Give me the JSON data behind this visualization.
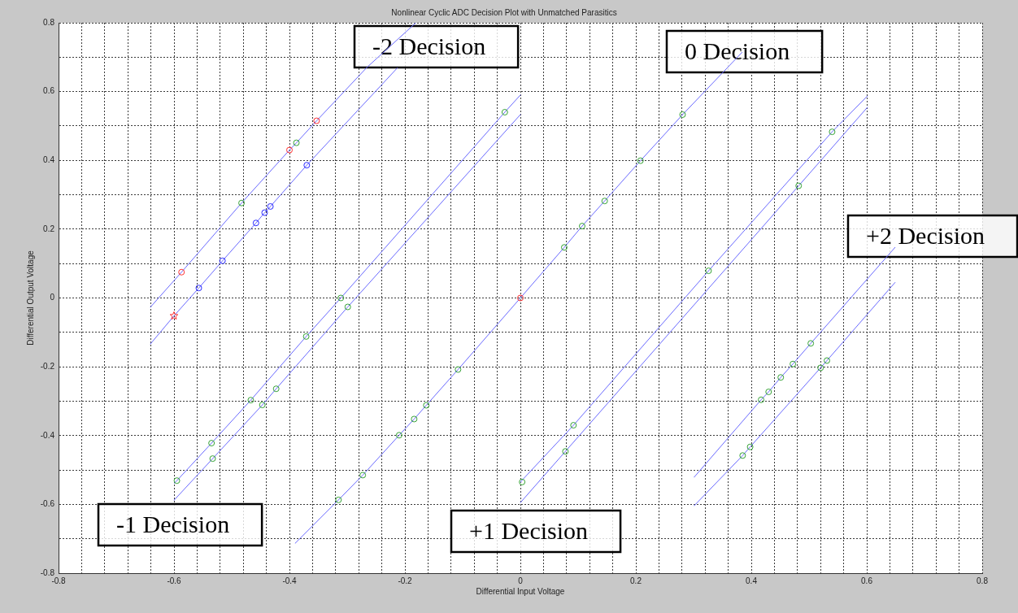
{
  "chart_data": {
    "type": "line",
    "title": "Nonlinear Cyclic ADC Decision Plot with Unmatched Parasitics",
    "xlabel": "Differential Input Voltage",
    "ylabel": "Differential Output Voltage",
    "xlim": [
      -0.8,
      0.8
    ],
    "ylim": [
      -0.8,
      0.8
    ],
    "xticks": [
      -0.8,
      {
        "value": -0.76,
        "label": null
      },
      {
        "value": -0.72,
        "label": null
      },
      {
        "value": -0.68,
        "label": null
      },
      {
        "value": -0.64,
        "label": null
      },
      -0.6,
      {
        "value": -0.56,
        "label": null
      },
      {
        "value": -0.52,
        "label": null
      },
      {
        "value": -0.48,
        "label": null
      },
      {
        "value": -0.44,
        "label": null
      },
      -0.4,
      {
        "value": -0.36,
        "label": null
      },
      {
        "value": -0.32,
        "label": null
      },
      {
        "value": -0.28,
        "label": null
      },
      {
        "value": -0.24,
        "label": null
      },
      -0.2,
      {
        "value": -0.16,
        "label": null
      },
      {
        "value": -0.12,
        "label": null
      },
      {
        "value": -0.08,
        "label": null
      },
      {
        "value": -0.04,
        "label": null
      },
      0,
      {
        "value": 0.04,
        "label": null
      },
      {
        "value": 0.08,
        "label": null
      },
      {
        "value": 0.12,
        "label": null
      },
      {
        "value": 0.16,
        "label": null
      },
      0.2,
      {
        "value": 0.24,
        "label": null
      },
      {
        "value": 0.28,
        "label": null
      },
      {
        "value": 0.32,
        "label": null
      },
      {
        "value": 0.36,
        "label": null
      },
      0.4,
      {
        "value": 0.44,
        "label": null
      },
      {
        "value": 0.48,
        "label": null
      },
      {
        "value": 0.52,
        "label": null
      },
      {
        "value": 0.56,
        "label": null
      },
      0.6,
      {
        "value": 0.64,
        "label": null
      },
      {
        "value": 0.68,
        "label": null
      },
      {
        "value": 0.72,
        "label": null
      },
      {
        "value": 0.76,
        "label": null
      },
      0.8
    ],
    "yticks": [
      -0.8,
      {
        "value": -0.7,
        "label": null
      },
      -0.6,
      {
        "value": -0.5,
        "label": null
      },
      -0.4,
      {
        "value": -0.3,
        "label": null
      },
      -0.2,
      {
        "value": -0.1,
        "label": null
      },
      0,
      {
        "value": 0.1,
        "label": null
      },
      0.2,
      {
        "value": 0.3,
        "label": null
      },
      0.4,
      {
        "value": 0.5,
        "label": null
      },
      0.6,
      {
        "value": 0.7,
        "label": null
      },
      0.8
    ],
    "grid": true,
    "series": [
      {
        "color": "#6a6aff",
        "x": [
          -0.641,
          -0.587,
          -0.483,
          -0.4,
          -0.388,
          -0.353,
          -0.266,
          -0.181
        ],
        "values": [
          -0.027,
          0.075,
          0.276,
          0.43,
          0.451,
          0.515,
          0.67,
          0.8
        ]
      },
      {
        "color": "#6a6aff",
        "x": [
          -0.641,
          -0.6,
          -0.557,
          -0.516,
          -0.458,
          -0.443,
          -0.433,
          -0.37,
          -0.213
        ],
        "values": [
          -0.134,
          -0.052,
          0.029,
          0.108,
          0.218,
          0.248,
          0.266,
          0.386,
          0.669
        ]
      },
      {
        "color": "#6a6aff",
        "x": [
          -0.6,
          -0.595,
          -0.535,
          -0.467,
          -0.371,
          -0.311,
          -0.027,
          0
        ],
        "values": [
          -0.539,
          -0.531,
          -0.422,
          -0.297,
          -0.112,
          0,
          0.54,
          0.59
        ]
      },
      {
        "color": "#6a6aff",
        "x": [
          -0.6,
          -0.533,
          -0.447,
          -0.423,
          -0.299,
          0
        ],
        "values": [
          -0.588,
          -0.467,
          -0.311,
          -0.264,
          -0.026,
          0.533
        ]
      },
      {
        "color": "#6a6aff",
        "x": [
          -0.39,
          -0.315,
          -0.273,
          -0.21,
          -0.184,
          -0.163,
          -0.108,
          0,
          0.076,
          0.107,
          0.146,
          0.208,
          0.281,
          0.384
        ],
        "values": [
          -0.713,
          -0.587,
          -0.515,
          -0.399,
          -0.352,
          -0.312,
          -0.208,
          0,
          0.147,
          0.209,
          0.282,
          0.399,
          0.533,
          0.714
        ]
      },
      {
        "color": "#6a6aff",
        "x": [
          0,
          0.092,
          0.326,
          0.54,
          0.601
        ],
        "values": [
          -0.535,
          -0.37,
          0.079,
          0.483,
          0.587
        ]
      },
      {
        "color": "#6a6aff",
        "x": [
          0,
          0.078,
          0.482,
          0.601
        ],
        "values": [
          -0.595,
          -0.446,
          0.326,
          0.554
        ]
      },
      {
        "color": "#6a6aff",
        "x": [
          0.301,
          0.417,
          0.43,
          0.451,
          0.472,
          0.503,
          0.649
        ],
        "values": [
          -0.521,
          -0.296,
          -0.273,
          -0.231,
          -0.192,
          -0.132,
          0.147
        ]
      },
      {
        "color": "#6a6aff",
        "x": [
          0.301,
          0.385,
          0.398,
          0.52,
          0.531,
          0.649
        ],
        "values": [
          -0.604,
          -0.458,
          -0.433,
          -0.203,
          -0.182,
          0.045
        ]
      },
      {
        "type": "scatter",
        "marker": "circle",
        "color": "#36a336",
        "x": [
          -0.483,
          -0.388,
          -0.027,
          -0.311,
          -0.299,
          -0.371,
          -0.467,
          -0.447,
          -0.423,
          -0.535,
          -0.533,
          -0.595,
          -0.108,
          -0.163,
          -0.184,
          -0.21,
          -0.273,
          -0.315,
          0.281,
          0.208,
          0.146,
          0.107,
          0.076,
          0.54,
          0.482,
          0.326,
          0.003,
          0.092,
          0.078,
          0.503,
          0.472,
          0.451,
          0.43,
          0.417,
          0.531,
          0.52,
          0.398,
          0.385
        ],
        "values": [
          0.276,
          0.451,
          0.54,
          0,
          -0.026,
          -0.112,
          -0.297,
          -0.311,
          -0.264,
          -0.422,
          -0.467,
          -0.531,
          -0.208,
          -0.312,
          -0.352,
          -0.399,
          -0.515,
          -0.587,
          0.533,
          0.399,
          0.282,
          0.209,
          0.147,
          0.483,
          0.326,
          0.079,
          -0.535,
          -0.37,
          -0.446,
          -0.132,
          -0.192,
          -0.231,
          -0.273,
          -0.296,
          -0.182,
          -0.203,
          -0.433,
          -0.458
        ]
      },
      {
        "type": "scatter",
        "marker": "circle",
        "color": "#ff3030",
        "x": [
          -0.587,
          -0.4,
          -0.353,
          0
        ],
        "values": [
          0.075,
          0.43,
          0.515,
          0
        ]
      },
      {
        "type": "scatter",
        "marker": "star",
        "color": "#ff3030",
        "x": [
          -0.6
        ],
        "values": [
          -0.052
        ]
      },
      {
        "type": "scatter",
        "marker": "circle",
        "color": "#2828ff",
        "x": [
          -0.557,
          -0.516,
          -0.458,
          -0.443,
          -0.433,
          -0.37
        ],
        "values": [
          0.029,
          0.108,
          0.218,
          0.248,
          0.266,
          0.386
        ]
      }
    ],
    "annotations": [
      "-2 Decision",
      "0 Decision",
      "+2 Decision",
      "-1 Decision",
      "+1 Decision"
    ]
  }
}
